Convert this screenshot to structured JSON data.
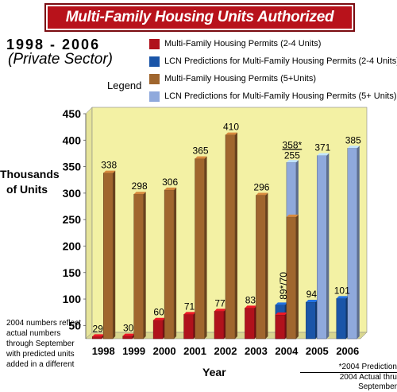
{
  "header": {
    "title": "Multi-Family Housing Units Authorized"
  },
  "subtitle": {
    "years": "1998 - 2006",
    "sector": "(Private Sector)"
  },
  "legend": {
    "title": "Legend",
    "items": [
      {
        "label": "Multi-Family Housing Permits (2-4 Units)",
        "color": "#b0121c"
      },
      {
        "label": "LCN Predictions for Multi-Family Housing Permits (2-4 Units)",
        "color": "#1a55a8"
      },
      {
        "label": "Multi-Family Housing Permits (5+Units)",
        "color": "#a0662e"
      },
      {
        "label": "LCN Predictions for Multi-Family Housing Permits (5+ Units)",
        "color": "#8fa9dc"
      }
    ]
  },
  "note": "2004 numbers reflect actual numbers through September with predicted units added in a different",
  "footnote": {
    "line1": "*2004 Prediction",
    "line2": "2004 Actual thru September"
  },
  "chart_data": {
    "type": "bar",
    "ylabel": "Thousands of Units",
    "xlabel": "Year",
    "ylim": [
      0,
      450
    ],
    "yticks": [
      50,
      100,
      150,
      200,
      250,
      300,
      350,
      400,
      450
    ],
    "categories": [
      "1998",
      "1999",
      "2000",
      "2001",
      "2002",
      "2003",
      "2004",
      "2005",
      "2006"
    ],
    "series": [
      {
        "name": "Multi-Family Housing Permits (2-4 Units)",
        "values": [
          29,
          30,
          60,
          71,
          77,
          83,
          70,
          null,
          null
        ]
      },
      {
        "name": "LCN Predictions for Multi-Family Housing Permits (2-4 Units)",
        "values": [
          null,
          null,
          null,
          null,
          null,
          null,
          89,
          94,
          101
        ]
      },
      {
        "name": "Multi-Family Housing Permits (5+Units)",
        "values": [
          338,
          298,
          306,
          365,
          410,
          296,
          255,
          null,
          null
        ]
      },
      {
        "name": "LCN Predictions for Multi-Family Housing Permits (5+ Units)",
        "values": [
          null,
          null,
          null,
          null,
          null,
          null,
          358,
          371,
          385
        ]
      }
    ],
    "labels": {
      "small": [
        "29",
        "30",
        "60",
        "71",
        "77",
        "83",
        "89*/70",
        "94",
        "101"
      ],
      "large": [
        "338",
        "298",
        "306",
        "365",
        "410",
        "296",
        "255",
        "371",
        "385"
      ],
      "extra_2004": "358*"
    },
    "grid": false
  }
}
